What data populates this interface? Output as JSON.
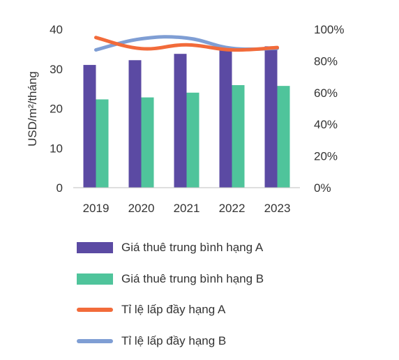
{
  "chart_data": {
    "type": "bar",
    "categories": [
      "2019",
      "2020",
      "2021",
      "2022",
      "2023"
    ],
    "series": [
      {
        "name": "Giá thuê trung bình hạng A",
        "type": "bar",
        "axis": "left",
        "values": [
          31,
          32.2,
          33.8,
          35.3,
          35.7
        ],
        "color": "#5B4AA3"
      },
      {
        "name": "Giá thuê trung bình hạng B",
        "type": "bar",
        "axis": "left",
        "values": [
          22.3,
          22.8,
          24,
          25.9,
          25.7
        ],
        "color": "#4FC49B"
      },
      {
        "name": "Tỉ lệ lấp đầy hạng A",
        "type": "line",
        "axis": "right",
        "values": [
          0.948,
          0.878,
          0.902,
          0.87,
          0.885
        ],
        "color": "#F26B3A"
      },
      {
        "name": "Tỉ lệ lấp đầy hạng B",
        "type": "line",
        "axis": "right",
        "values": [
          0.87,
          0.94,
          0.945,
          0.88,
          0.88
        ],
        "color": "#7F9ED4"
      }
    ],
    "ylabel": "USD/m²/tháng",
    "ylim": [
      0,
      40
    ],
    "yticks": [
      "0",
      "10",
      "20",
      "30",
      "40"
    ],
    "y2lim": [
      0,
      1
    ],
    "y2ticks": [
      "0%",
      "20%",
      "40%",
      "60%",
      "80%",
      "100%"
    ],
    "grid": false,
    "legend_position": "bottom"
  }
}
